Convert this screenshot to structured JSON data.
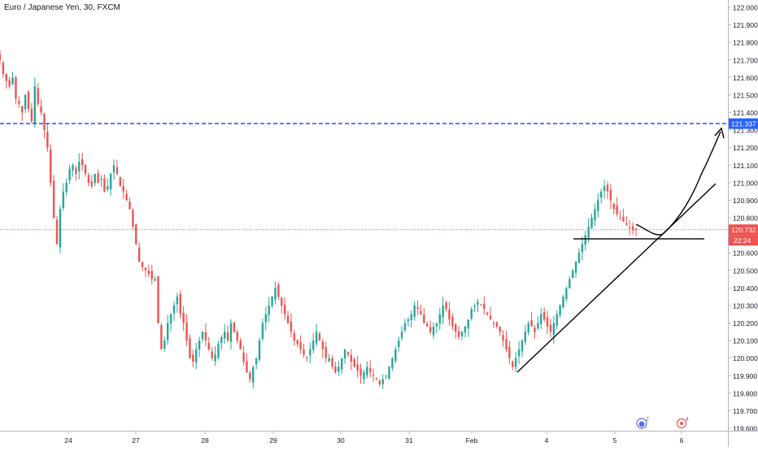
{
  "title": "Euro / Japanese Yen, 30, FXCM",
  "colors": {
    "up": "#26a69a",
    "down": "#ef5350",
    "resistance_line": "#2962ff",
    "current_price_line": "#ef5350",
    "drawing": "#000000",
    "axis_text": "#131722",
    "axis_line": "#b2b5be"
  },
  "price_axis": {
    "ticks": [
      "122.000",
      "121.900",
      "121.800",
      "121.700",
      "121.600",
      "121.500",
      "121.400",
      "121.300",
      "121.200",
      "121.100",
      "121.000",
      "120.900",
      "120.800",
      "120.700",
      "120.600",
      "120.500",
      "120.400",
      "120.300",
      "120.200",
      "120.100",
      "120.000",
      "119.900",
      "119.800",
      "119.700",
      "119.600"
    ],
    "badges": {
      "resistance": "121.337",
      "current_price": "120.732",
      "countdown": "22:24"
    }
  },
  "time_axis": {
    "labels": [
      "24",
      "27",
      "28",
      "29",
      "30",
      "31",
      "Feb",
      "4",
      "5",
      "6"
    ]
  },
  "event_markers": [
    {
      "icon": "event-badge-icon",
      "count": "2"
    },
    {
      "icon": "event-target-icon",
      "count": "4"
    }
  ],
  "chart_data": {
    "type": "candlestick",
    "title": "Euro / Japanese Yen, 30, FXCM",
    "symbol": "EUR/JPY",
    "timeframe": "30",
    "source": "FXCM",
    "ylim": [
      119.56,
      122.04
    ],
    "x_labels": [
      "24",
      "27",
      "28",
      "29",
      "30",
      "31",
      "Feb",
      "4",
      "5",
      "6"
    ],
    "horizontal_lines": [
      {
        "name": "resistance",
        "value": 121.337,
        "style": "dashed"
      },
      {
        "name": "current_price",
        "value": 120.732,
        "style": "dotted"
      },
      {
        "name": "support",
        "value": 120.68,
        "style": "solid"
      }
    ],
    "close_path": [
      121.7,
      121.62,
      121.58,
      121.55,
      121.6,
      121.48,
      121.45,
      121.4,
      121.5,
      121.42,
      121.35,
      121.55,
      121.45,
      121.4,
      121.3,
      121.2,
      121.0,
      120.8,
      120.65,
      120.85,
      120.95,
      121.0,
      121.08,
      121.1,
      121.05,
      121.12,
      121.1,
      121.05,
      121.0,
      120.98,
      121.05,
      121.0,
      121.02,
      120.95,
      120.98,
      121.05,
      121.1,
      121.05,
      120.98,
      120.95,
      120.9,
      120.85,
      120.75,
      120.65,
      120.55,
      120.52,
      120.5,
      120.48,
      120.45,
      120.45,
      120.2,
      120.05,
      120.1,
      120.2,
      120.25,
      120.3,
      120.35,
      120.25,
      120.2,
      120.1,
      120.0,
      119.98,
      120.05,
      120.1,
      120.15,
      120.1,
      120.05,
      120.0,
      120.02,
      120.08,
      120.12,
      120.15,
      120.1,
      120.2,
      120.15,
      120.1,
      120.05,
      119.98,
      119.92,
      119.88,
      119.95,
      120.0,
      120.1,
      120.2,
      120.25,
      120.3,
      120.35,
      120.4,
      120.35,
      120.3,
      120.25,
      120.2,
      120.15,
      120.1,
      120.08,
      120.05,
      120.02,
      120.0,
      120.05,
      120.1,
      120.15,
      120.1,
      120.05,
      120.0,
      120.0,
      119.95,
      119.92,
      119.95,
      120.0,
      120.05,
      120.02,
      119.98,
      119.95,
      119.93,
      119.9,
      119.92,
      119.95,
      119.92,
      119.9,
      119.88,
      119.85,
      119.88,
      119.9,
      119.95,
      120.0,
      120.05,
      120.1,
      120.15,
      120.2,
      120.22,
      120.25,
      120.3,
      120.28,
      120.25,
      120.2,
      120.18,
      120.15,
      120.18,
      120.2,
      120.25,
      120.3,
      120.28,
      120.22,
      120.18,
      120.15,
      120.12,
      120.15,
      120.18,
      120.22,
      120.28,
      120.3,
      120.32,
      120.3,
      120.28,
      120.25,
      120.22,
      120.2,
      120.18,
      120.15,
      120.1,
      120.05,
      120.0,
      119.95,
      120.0,
      120.05,
      120.1,
      120.15,
      120.2,
      120.18,
      120.15,
      120.2,
      120.25,
      120.22,
      120.18,
      120.15,
      120.2,
      120.25,
      120.3,
      120.35,
      120.4,
      120.45,
      120.5,
      120.55,
      120.6,
      120.65,
      120.7,
      120.75,
      120.8,
      120.85,
      120.9,
      120.95,
      120.98,
      120.95,
      120.9,
      120.85,
      120.82,
      120.8,
      120.78,
      120.76,
      120.74,
      120.73,
      120.732
    ]
  }
}
